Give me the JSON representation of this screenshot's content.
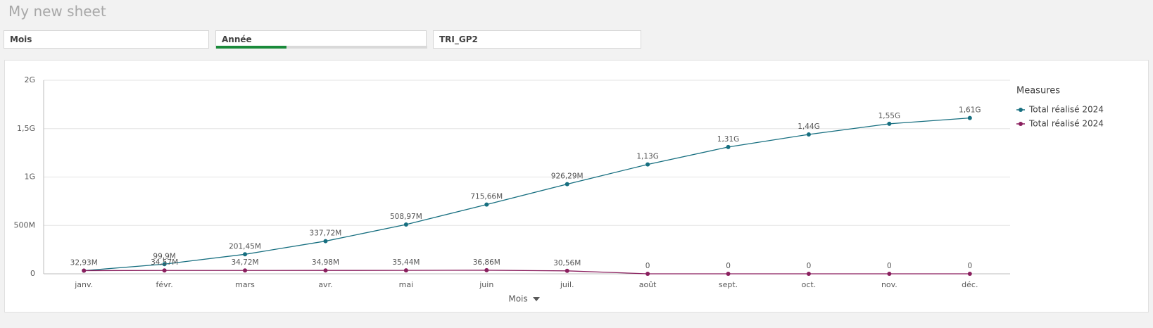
{
  "header": {
    "title": "My new sheet"
  },
  "filters": [
    "Mois",
    "Année",
    "TRI_GP2"
  ],
  "chart_data": {
    "type": "line",
    "categories": [
      "janv.",
      "févr.",
      "mars",
      "avr.",
      "mai",
      "juin",
      "juil.",
      "août",
      "sept.",
      "oct.",
      "nov.",
      "déc."
    ],
    "series": [
      {
        "name": "Total réalisé 2024",
        "color": "#176f80",
        "values": [
          32930000,
          99900000,
          201450000,
          337720000,
          508970000,
          715660000,
          926290000,
          1130000000,
          1310000000,
          1440000000,
          1550000000,
          1610000000
        ],
        "value_labels": [
          "32,93M",
          "99,9M",
          "201,45M",
          "337,72M",
          "508,97M",
          "715,66M",
          "926,29M",
          "1,13G",
          "1,31G",
          "1,44G",
          "1,55G",
          "1,61G"
        ]
      },
      {
        "name": "Total réalisé 2024",
        "color": "#8a1f5e",
        "values": [
          32930000,
          34570000,
          34720000,
          34980000,
          35440000,
          36860000,
          30560000,
          0,
          0,
          0,
          0,
          0
        ],
        "value_labels": [
          null,
          "34,57M",
          "34,72M",
          "34,98M",
          "35,44M",
          "36,86M",
          "30,56M",
          "0",
          "0",
          "0",
          "0",
          "0"
        ]
      }
    ],
    "ylim": [
      0,
      2000000000
    ],
    "yticks": [
      0,
      {
        "value": 500000000,
        "label": "500M"
      },
      {
        "value": 1000000000,
        "label": "1G"
      },
      {
        "value": 1500000000,
        "label": "1,5G"
      },
      {
        "value": 2000000000,
        "label": "2G"
      }
    ],
    "grid": true,
    "x_label": "Mois",
    "legend_title": "Measures",
    "legend_position": "right"
  }
}
